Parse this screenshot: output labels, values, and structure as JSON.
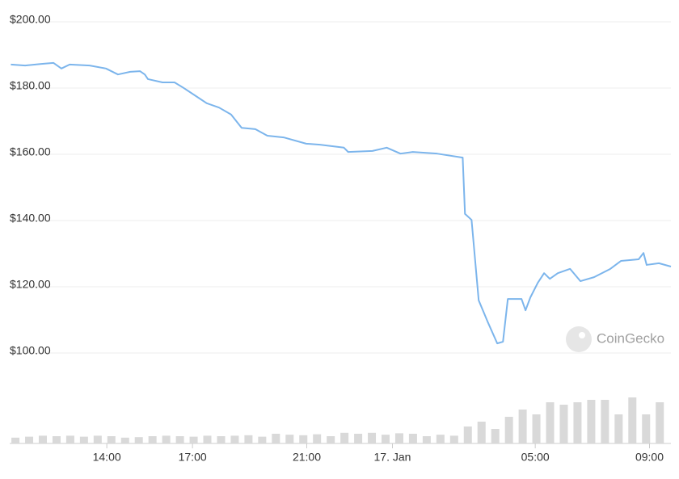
{
  "chart_data": {
    "type": "line",
    "color": "#7cb5ec",
    "grid": true,
    "watermark": "CoinGecko",
    "ylim": [
      100,
      200
    ],
    "yticks": [
      {
        "value": 100,
        "label": "$100.00"
      },
      {
        "value": 120,
        "label": "$120.00"
      },
      {
        "value": 140,
        "label": "$140.00"
      },
      {
        "value": 160,
        "label": "$160.00"
      },
      {
        "value": 180,
        "label": "$180.00"
      },
      {
        "value": 200,
        "label": "$200.00"
      }
    ],
    "xlim": [
      10.6,
      33.75
    ],
    "xticks": [
      {
        "value": 14,
        "label": "14:00"
      },
      {
        "value": 17,
        "label": "17:00"
      },
      {
        "value": 21,
        "label": "21:00"
      },
      {
        "value": 24,
        "label": "17. Jan"
      },
      {
        "value": 29,
        "label": "05:00"
      },
      {
        "value": 33,
        "label": "09:00"
      }
    ],
    "x": [
      10.64,
      11.14,
      11.71,
      12.13,
      12.41,
      12.7,
      13.4,
      13.97,
      14.39,
      14.82,
      15.16,
      15.33,
      15.44,
      15.95,
      16.37,
      16.66,
      17.08,
      17.5,
      17.93,
      18.35,
      18.72,
      19.2,
      19.62,
      20.19,
      20.98,
      21.46,
      22.3,
      22.45,
      23.3,
      23.8,
      24.28,
      24.71,
      25.56,
      26.46,
      26.54,
      26.77,
      27.02,
      27.33,
      27.67,
      27.87,
      28.04,
      28.52,
      28.66,
      28.83,
      29.09,
      29.31,
      29.51,
      29.79,
      30.22,
      30.58,
      31.06,
      31.63,
      32.0,
      32.62,
      32.79,
      32.9,
      33.33,
      33.75
    ],
    "values": [
      187.1,
      186.8,
      187.3,
      187.6,
      185.9,
      187.1,
      186.8,
      185.9,
      184.1,
      184.9,
      185.1,
      184.1,
      182.7,
      181.7,
      181.7,
      180.2,
      177.8,
      175.4,
      174.1,
      172.0,
      168.0,
      167.6,
      165.6,
      165.1,
      163.2,
      162.9,
      162.0,
      160.7,
      161.0,
      162.0,
      160.2,
      160.7,
      160.2,
      159.0,
      142.0,
      140.2,
      115.9,
      109.5,
      102.9,
      103.4,
      116.3,
      116.3,
      112.9,
      116.8,
      121.2,
      124.1,
      122.4,
      124.1,
      125.4,
      121.7,
      122.9,
      125.4,
      127.8,
      128.3,
      130.2,
      126.6,
      127.1,
      126.1
    ],
    "volume": {
      "color": "#d9d9d9",
      "y2lim": [
        0,
        100
      ],
      "x": [
        10.8,
        11.28,
        11.76,
        12.24,
        12.72,
        13.2,
        13.68,
        14.16,
        14.64,
        15.12,
        15.6,
        16.08,
        16.56,
        17.04,
        17.52,
        18.0,
        18.48,
        18.96,
        19.44,
        19.92,
        20.4,
        20.88,
        21.36,
        21.84,
        22.32,
        22.8,
        23.28,
        23.76,
        24.24,
        24.72,
        25.2,
        25.68,
        26.16,
        26.64,
        27.12,
        27.6,
        28.08,
        28.56,
        29.04,
        29.52,
        30.0,
        30.48,
        30.96,
        31.44,
        31.92,
        32.4,
        32.88,
        33.36
      ],
      "values": [
        12,
        14,
        16,
        15,
        16,
        14,
        16,
        15,
        12,
        13,
        15,
        16,
        15,
        14,
        16,
        15,
        16,
        17,
        14,
        20,
        18,
        17,
        19,
        15,
        22,
        20,
        22,
        18,
        21,
        20,
        15,
        18,
        16,
        35,
        45,
        30,
        55,
        70,
        60,
        85,
        80,
        85,
        90,
        90,
        60,
        95,
        60,
        85
      ]
    }
  }
}
